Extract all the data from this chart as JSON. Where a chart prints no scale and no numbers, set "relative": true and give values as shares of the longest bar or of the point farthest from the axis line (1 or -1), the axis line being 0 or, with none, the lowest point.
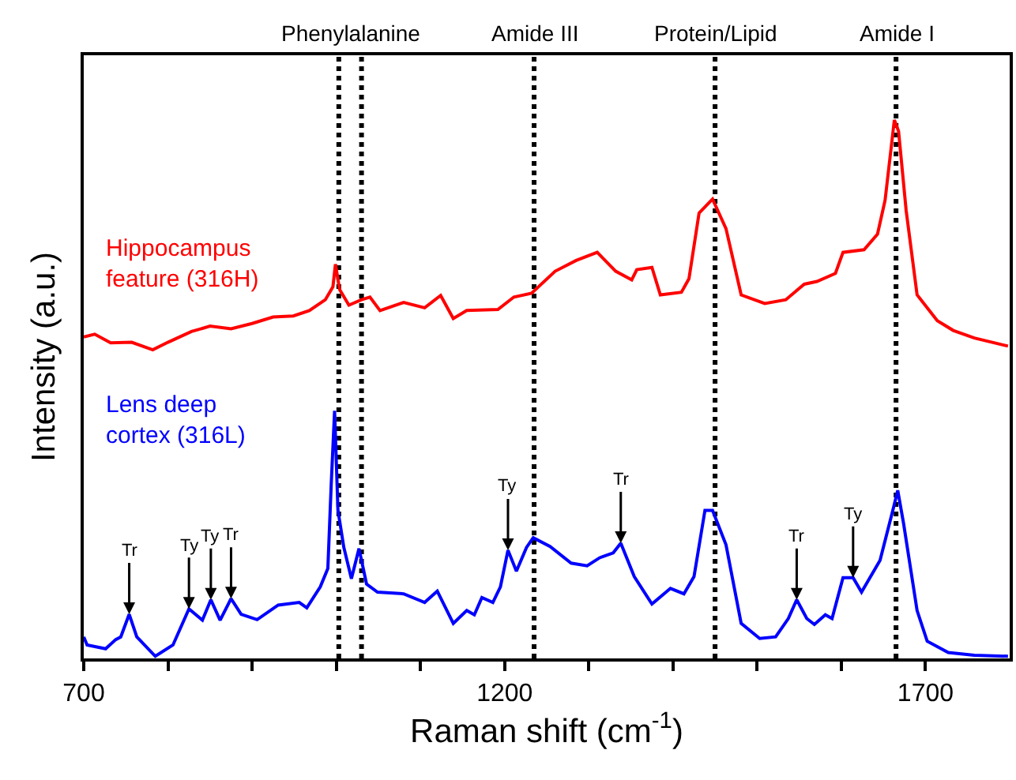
{
  "chart_data": {
    "type": "line",
    "relative": true,
    "xlabel": "Raman shift (cm$^{-1}$)",
    "ylabel": "Intensity (a.u.)",
    "xlim": [
      700,
      1800
    ],
    "xticks": [
      700,
      {
        "value": 800,
        "label": null
      },
      {
        "value": 900,
        "label": null
      },
      {
        "value": 1000,
        "label": null
      },
      {
        "value": 1100,
        "label": null
      },
      1200,
      {
        "value": 1300,
        "label": null
      },
      {
        "value": 1400,
        "label": null
      },
      {
        "value": 1500,
        "label": null
      },
      {
        "value": 1600,
        "label": null
      },
      1700
    ],
    "grid": false,
    "legend": false,
    "marker": "none",
    "line_style": "solid",
    "series": [
      {
        "name": "Hippocampus feature (316H)",
        "color": "#ff0000",
        "x": [
          700,
          713,
          732,
          757,
          782,
          800,
          828,
          850,
          875,
          900,
          925,
          949,
          968,
          987,
          996,
          999,
          1004,
          1015,
          1030,
          1040,
          1052,
          1080,
          1105,
          1124,
          1139,
          1155,
          1192,
          1211,
          1232,
          1260,
          1285,
          1310,
          1332,
          1351,
          1357,
          1375,
          1385,
          1410,
          1419,
          1431,
          1447,
          1463,
          1481,
          1509,
          1534,
          1556,
          1571,
          1593,
          1602,
          1627,
          1643,
          1652,
          1663,
          1668,
          1677,
          1690,
          1714,
          1733,
          1758,
          1798
        ],
        "values": [
          0.597,
          0.602,
          0.586,
          0.587,
          0.573,
          0.587,
          0.607,
          0.617,
          0.612,
          0.622,
          0.634,
          0.636,
          0.646,
          0.666,
          0.69,
          0.732,
          0.685,
          0.656,
          0.666,
          0.671,
          0.646,
          0.661,
          0.651,
          0.674,
          0.631,
          0.646,
          0.648,
          0.671,
          0.678,
          0.719,
          0.739,
          0.754,
          0.719,
          0.703,
          0.722,
          0.726,
          0.675,
          0.68,
          0.705,
          0.827,
          0.853,
          0.798,
          0.675,
          0.659,
          0.666,
          0.695,
          0.7,
          0.715,
          0.754,
          0.759,
          0.788,
          0.851,
          1,
          0.979,
          0.832,
          0.675,
          0.627,
          0.609,
          0.595,
          0.58
        ]
      },
      {
        "name": "Lens deep cortex (316L)",
        "color": "#0000ff",
        "x": [
          700,
          704,
          726,
          738,
          744,
          754,
          763,
          785,
          806,
          825,
          841,
          851,
          862,
          875,
          887,
          906,
          931,
          956,
          965,
          981,
          990,
          994,
          998,
          1002,
          1009,
          1018,
          1027,
          1036,
          1049,
          1080,
          1105,
          1120,
          1139,
          1155,
          1164,
          1173,
          1186,
          1195,
          1204,
          1214,
          1226,
          1234,
          1254,
          1279,
          1298,
          1313,
          1329,
          1338,
          1354,
          1375,
          1397,
          1413,
          1425,
          1438,
          1447,
          1463,
          1481,
          1503,
          1522,
          1537,
          1547,
          1559,
          1568,
          1581,
          1589,
          1602,
          1614,
          1624,
          1646,
          1662,
          1667,
          1674,
          1690,
          1702,
          1727,
          1758,
          1798
        ],
        "values": [
          0.04,
          0.025,
          0.018,
          0.035,
          0.04,
          0.082,
          0.04,
          0.004,
          0.025,
          0.092,
          0.071,
          0.109,
          0.071,
          0.111,
          0.082,
          0.072,
          0.099,
          0.104,
          0.094,
          0.133,
          0.167,
          0.323,
          0.46,
          0.275,
          0.206,
          0.148,
          0.204,
          0.138,
          0.123,
          0.12,
          0.104,
          0.125,
          0.065,
          0.089,
          0.081,
          0.113,
          0.104,
          0.133,
          0.201,
          0.162,
          0.206,
          0.224,
          0.208,
          0.177,
          0.172,
          0.187,
          0.196,
          0.214,
          0.152,
          0.101,
          0.13,
          0.12,
          0.152,
          0.275,
          0.275,
          0.211,
          0.065,
          0.037,
          0.04,
          0.074,
          0.109,
          0.074,
          0.063,
          0.081,
          0.074,
          0.15,
          0.15,
          0.123,
          0.182,
          0.28,
          0.312,
          0.25,
          0.089,
          0.032,
          0.011,
          0.006,
          0.004
        ]
      }
    ],
    "ref_lines": [
      {
        "axis": "x",
        "value": 1003,
        "label": "Phenylalanine",
        "color": "#000000",
        "line_style": "dotted"
      },
      {
        "axis": "x",
        "value": 1030,
        "label": null,
        "color": "#000000",
        "line_style": "dotted"
      },
      {
        "axis": "x",
        "value": 1235,
        "label": "Amide III",
        "color": "#000000",
        "line_style": "dotted"
      },
      {
        "axis": "x",
        "value": 1450,
        "label": "Protein/Lipid",
        "color": "#000000",
        "line_style": "dotted"
      },
      {
        "axis": "x",
        "value": 1665,
        "label": "Amide I",
        "color": "#000000",
        "line_style": "dotted"
      }
    ],
    "annotations": [
      {
        "text": "Tr",
        "x": 754,
        "y": 0.082
      },
      {
        "text": "Ty",
        "x": 825,
        "y": 0.092
      },
      {
        "text": "Ty",
        "x": 851,
        "y": 0.109
      },
      {
        "text": "Tr",
        "x": 875,
        "y": 0.111
      },
      {
        "text": "Ty",
        "x": 1204,
        "y": 0.201
      },
      {
        "text": "Tr",
        "x": 1338,
        "y": 0.214
      },
      {
        "text": "Tr",
        "x": 1547,
        "y": 0.109
      },
      {
        "text": "Ty",
        "x": 1614,
        "y": 0.15
      }
    ]
  }
}
